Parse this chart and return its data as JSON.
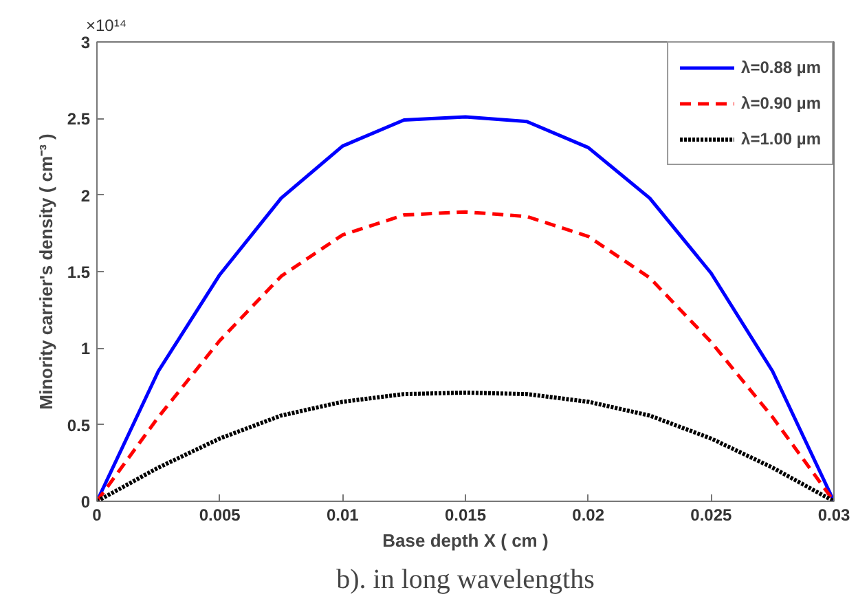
{
  "chart_data": {
    "type": "line",
    "xlabel": "Base depth X ( cm )",
    "ylabel": "Minority carrier's density ( cm⁻³ )",
    "annotations": [
      "×10¹⁴",
      "b). in long wavelengths"
    ],
    "x": [
      0,
      0.0025,
      0.005,
      0.0075,
      0.01,
      0.0125,
      0.015,
      0.0175,
      0.02,
      0.0225,
      0.025,
      0.0275,
      0.03
    ],
    "series": [
      {
        "name": "λ=0.88 µm",
        "color": "#0000ff",
        "line_style": "solid",
        "values": [
          0,
          0.85,
          1.48,
          1.98,
          2.32,
          2.49,
          2.51,
          2.48,
          2.31,
          1.98,
          1.49,
          0.85,
          0
        ]
      },
      {
        "name": "λ=0.90 µm",
        "color": "#ff0000",
        "line_style": "dashed",
        "values": [
          0,
          0.55,
          1.05,
          1.47,
          1.74,
          1.87,
          1.89,
          1.86,
          1.73,
          1.46,
          1.04,
          0.55,
          0
        ]
      },
      {
        "name": "λ=1.00 µm",
        "color": "#000000",
        "line_style": "dotted",
        "values": [
          0,
          0.22,
          0.41,
          0.56,
          0.65,
          0.7,
          0.71,
          0.7,
          0.65,
          0.56,
          0.41,
          0.22,
          0
        ]
      }
    ],
    "xlim": [
      0,
      0.03
    ],
    "xticks": [
      0,
      0.005,
      0.01,
      0.015,
      0.02,
      0.025,
      0.03
    ],
    "ylim": [
      0,
      3
    ],
    "yticks": [
      0,
      0.5,
      1,
      1.5,
      2,
      2.5,
      3
    ],
    "grid": false,
    "legend": "top right",
    "marker": "none"
  }
}
